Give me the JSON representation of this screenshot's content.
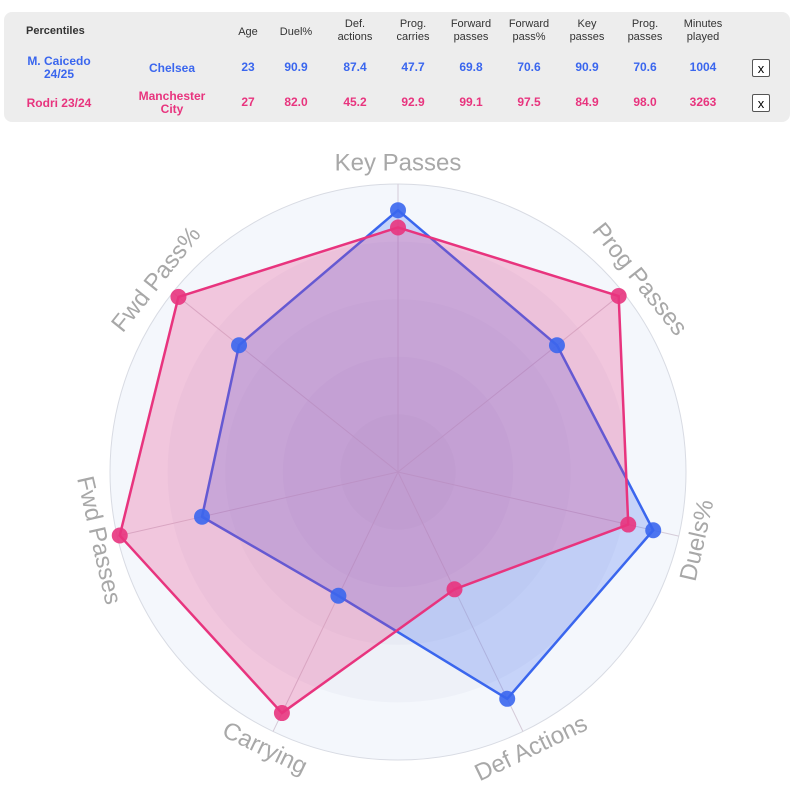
{
  "table": {
    "title": "Percentiles",
    "columns": [
      "Age",
      "Duel%",
      "Def. actions",
      "Prog. carries",
      "Forward passes",
      "Forward pass%",
      "Key passes",
      "Prog. passes",
      "Minutes played"
    ],
    "column_lines": [
      [
        "Age"
      ],
      [
        "Duel%"
      ],
      [
        "Def.",
        "actions"
      ],
      [
        "Prog.",
        "carries"
      ],
      [
        "Forward",
        "passes"
      ],
      [
        "Forward",
        "pass%"
      ],
      [
        "Key",
        "passes"
      ],
      [
        "Prog.",
        "passes"
      ],
      [
        "Minutes",
        "played"
      ]
    ],
    "rows": [
      {
        "player": "M. Caicedo 24/25",
        "player_lines": [
          "M. Caicedo",
          "24/25"
        ],
        "team": "Chelsea",
        "team_lines": [
          "Chelsea"
        ],
        "values": [
          "23",
          "90.9",
          "87.4",
          "47.7",
          "69.8",
          "70.6",
          "90.9",
          "70.6",
          "1004"
        ],
        "remove_label": "x",
        "color": "#3a66ee"
      },
      {
        "player": "Rodri 23/24",
        "player_lines": [
          "Rodri 23/24"
        ],
        "team": "Manchester City",
        "team_lines": [
          "Manchester",
          "City"
        ],
        "values": [
          "27",
          "82.0",
          "45.2",
          "92.9",
          "99.1",
          "97.5",
          "84.9",
          "98.0",
          "3263"
        ],
        "remove_label": "x",
        "color": "#e8347e"
      }
    ]
  },
  "chart_data": {
    "type": "radar",
    "axes": [
      "Key Passes",
      "Prog Passes",
      "Duels%",
      "Def Actions",
      "Carrying",
      "Fwd Passes",
      "Fwd Pass%"
    ],
    "range": [
      0,
      100
    ],
    "grid": true,
    "series": [
      {
        "name": "M. Caicedo 24/25",
        "values": [
          90.9,
          70.6,
          90.9,
          87.4,
          47.7,
          69.8,
          70.6
        ],
        "color": "#3a66ee"
      },
      {
        "name": "Rodri 23/24",
        "values": [
          84.9,
          98.0,
          82.0,
          45.2,
          92.9,
          99.1,
          97.5
        ],
        "color": "#e8347e"
      }
    ]
  }
}
